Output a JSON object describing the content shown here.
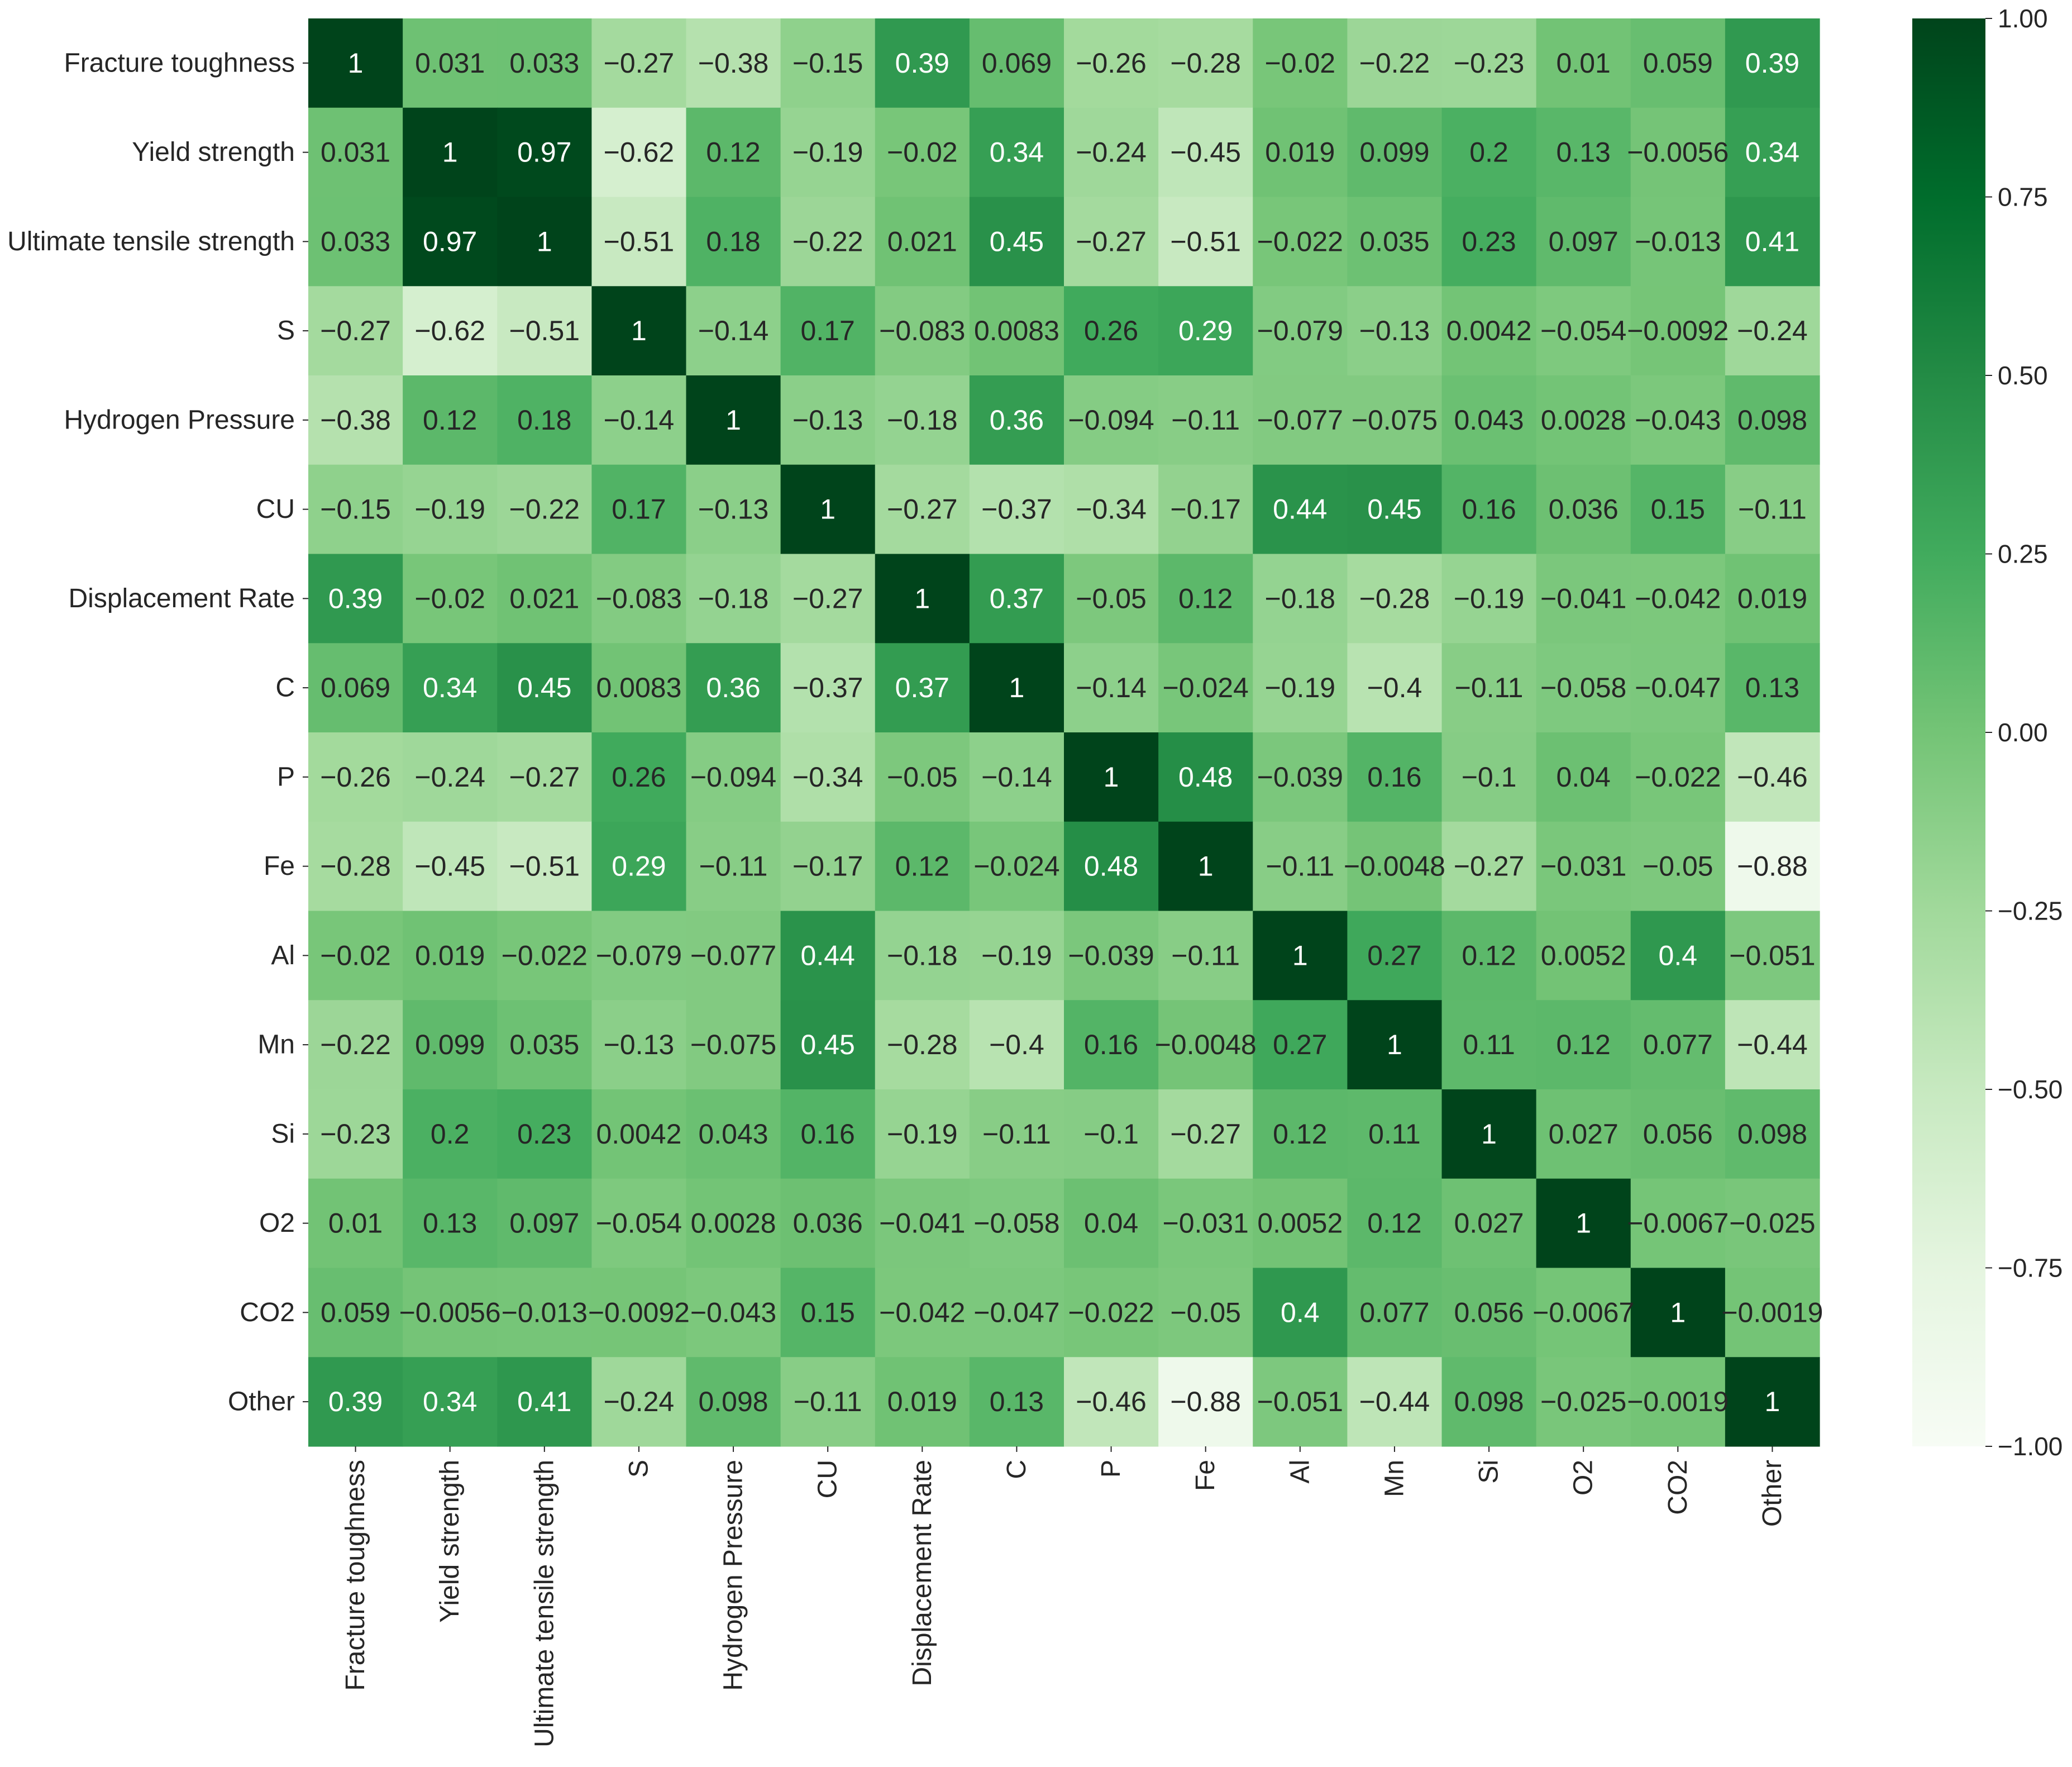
{
  "chart_data": {
    "type": "heatmap",
    "title": "",
    "xlabel": "",
    "ylabel": "",
    "row_labels": [
      "Fracture toughness",
      "Yield strength",
      "Ultimate tensile strength",
      "S",
      "Hydrogen Pressure",
      "CU",
      "Displacement Rate",
      "C",
      "P",
      "Fe",
      "Al",
      "Mn",
      "Si",
      "O2",
      "CO2",
      "Other"
    ],
    "col_labels": [
      "Fracture toughness",
      "Yield strength",
      "Ultimate tensile strength",
      "S",
      "Hydrogen Pressure",
      "CU",
      "Displacement Rate",
      "C",
      "P",
      "Fe",
      "Al",
      "Mn",
      "Si",
      "O2",
      "CO2",
      "Other"
    ],
    "values": [
      [
        1,
        0.031,
        0.033,
        -0.27,
        -0.38,
        -0.15,
        0.39,
        0.069,
        -0.26,
        -0.28,
        -0.02,
        -0.22,
        -0.23,
        0.01,
        0.059,
        0.39
      ],
      [
        0.031,
        1,
        0.97,
        -0.62,
        0.12,
        -0.19,
        -0.02,
        0.34,
        -0.24,
        -0.45,
        0.019,
        0.099,
        0.2,
        0.13,
        -0.0056,
        0.34
      ],
      [
        0.033,
        0.97,
        1,
        -0.51,
        0.18,
        -0.22,
        0.021,
        0.45,
        -0.27,
        -0.51,
        -0.022,
        0.035,
        0.23,
        0.097,
        -0.013,
        0.41
      ],
      [
        -0.27,
        -0.62,
        -0.51,
        1,
        -0.14,
        0.17,
        -0.083,
        0.0083,
        0.26,
        0.29,
        -0.079,
        -0.13,
        0.0042,
        -0.054,
        -0.0092,
        -0.24
      ],
      [
        -0.38,
        0.12,
        0.18,
        -0.14,
        1,
        -0.13,
        -0.18,
        0.36,
        -0.094,
        -0.11,
        -0.077,
        -0.075,
        0.043,
        0.0028,
        -0.043,
        0.098
      ],
      [
        -0.15,
        -0.19,
        -0.22,
        0.17,
        -0.13,
        1,
        -0.27,
        -0.37,
        -0.34,
        -0.17,
        0.44,
        0.45,
        0.16,
        0.036,
        0.15,
        -0.11
      ],
      [
        0.39,
        -0.02,
        0.021,
        -0.083,
        -0.18,
        -0.27,
        1,
        0.37,
        -0.05,
        0.12,
        -0.18,
        -0.28,
        -0.19,
        -0.041,
        -0.042,
        0.019
      ],
      [
        0.069,
        0.34,
        0.45,
        0.0083,
        0.36,
        -0.37,
        0.37,
        1,
        -0.14,
        -0.024,
        -0.19,
        -0.4,
        -0.11,
        -0.058,
        -0.047,
        0.13
      ],
      [
        -0.26,
        -0.24,
        -0.27,
        0.26,
        -0.094,
        -0.34,
        -0.05,
        -0.14,
        1,
        0.48,
        -0.039,
        0.16,
        -0.1,
        0.04,
        -0.022,
        -0.46
      ],
      [
        -0.28,
        -0.45,
        -0.51,
        0.29,
        -0.11,
        -0.17,
        0.12,
        -0.024,
        0.48,
        1,
        -0.11,
        -0.0048,
        -0.27,
        -0.031,
        -0.05,
        -0.88
      ],
      [
        -0.02,
        0.019,
        -0.022,
        -0.079,
        -0.077,
        0.44,
        -0.18,
        -0.19,
        -0.039,
        -0.11,
        1,
        0.27,
        0.12,
        0.0052,
        0.4,
        -0.051
      ],
      [
        -0.22,
        0.099,
        0.035,
        -0.13,
        -0.075,
        0.45,
        -0.28,
        -0.4,
        0.16,
        -0.0048,
        0.27,
        1,
        0.11,
        0.12,
        0.077,
        -0.44
      ],
      [
        -0.23,
        0.2,
        0.23,
        0.0042,
        0.043,
        0.16,
        -0.19,
        -0.11,
        -0.1,
        -0.27,
        0.12,
        0.11,
        1,
        0.027,
        0.056,
        0.098
      ],
      [
        0.01,
        0.13,
        0.097,
        -0.054,
        0.0028,
        0.036,
        -0.041,
        -0.058,
        0.04,
        -0.031,
        0.0052,
        0.12,
        0.027,
        1,
        -0.0067,
        -0.025
      ],
      [
        0.059,
        -0.0056,
        -0.013,
        -0.0092,
        -0.043,
        0.15,
        -0.042,
        -0.047,
        -0.022,
        -0.05,
        0.4,
        0.077,
        0.056,
        -0.0067,
        1,
        -0.0019
      ],
      [
        0.39,
        0.34,
        0.41,
        -0.24,
        0.098,
        -0.11,
        0.019,
        0.13,
        -0.46,
        -0.88,
        -0.051,
        -0.44,
        0.098,
        -0.025,
        -0.0019,
        1
      ]
    ],
    "colorbar": {
      "vmin": -1.0,
      "vmax": 1.0,
      "ticks": [
        1.0,
        0.75,
        0.5,
        0.25,
        0.0,
        -0.25,
        -0.5,
        -0.75,
        -1.0
      ],
      "tick_labels": [
        "1.00",
        "0.75",
        "0.50",
        "0.25",
        "0.00",
        "−0.25",
        "−0.50",
        "−0.75",
        "−1.00"
      ]
    },
    "colormap": "Greens",
    "colormap_stops": [
      "#f7fcf5",
      "#e5f5e0",
      "#c7e9c0",
      "#a1d99b",
      "#74c476",
      "#41ab5d",
      "#238b45",
      "#006d2c",
      "#00441b"
    ],
    "annotation_colors": {
      "dark_text": "#262626",
      "light_text": "#ffffff"
    }
  }
}
